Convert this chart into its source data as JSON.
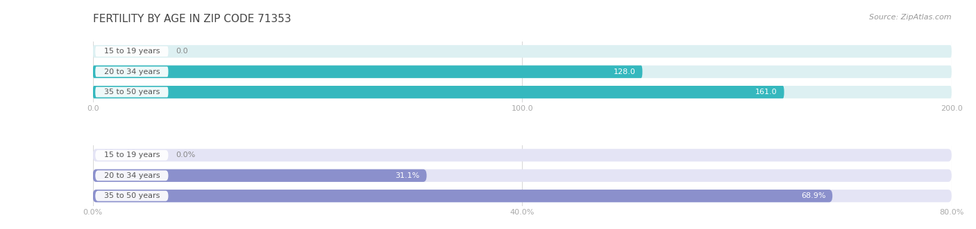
{
  "title": "FERTILITY BY AGE IN ZIP CODE 71353",
  "source": "Source: ZipAtlas.com",
  "top_chart": {
    "categories": [
      "15 to 19 years",
      "20 to 34 years",
      "35 to 50 years"
    ],
    "values": [
      0.0,
      128.0,
      161.0
    ],
    "xlim": [
      0,
      200
    ],
    "xticks": [
      0.0,
      100.0,
      200.0
    ],
    "xtick_labels": [
      "0.0",
      "100.0",
      "200.0"
    ],
    "bar_color_full": "#35b8be",
    "bar_color_empty": "#ddf0f2",
    "bar_height": 0.62
  },
  "bottom_chart": {
    "categories": [
      "15 to 19 years",
      "20 to 34 years",
      "35 to 50 years"
    ],
    "values": [
      0.0,
      31.1,
      68.9
    ],
    "xlim": [
      0,
      80
    ],
    "xticks": [
      0.0,
      40.0,
      80.0
    ],
    "xtick_labels": [
      "0.0%",
      "40.0%",
      "80.0%"
    ],
    "bar_color_full": "#8b90cc",
    "bar_color_empty": "#e4e4f5",
    "bar_height": 0.62
  },
  "label_fontsize": 8.0,
  "tick_fontsize": 8.0,
  "title_fontsize": 11,
  "source_fontsize": 8,
  "category_fontsize": 8.0,
  "background_color": "#ffffff",
  "grid_color": "#d0d0d0",
  "cat_label_bg": "#ffffff",
  "cat_label_color": "#555555",
  "value_label_inside_color": "#ffffff",
  "value_label_outside_color": "#888888"
}
